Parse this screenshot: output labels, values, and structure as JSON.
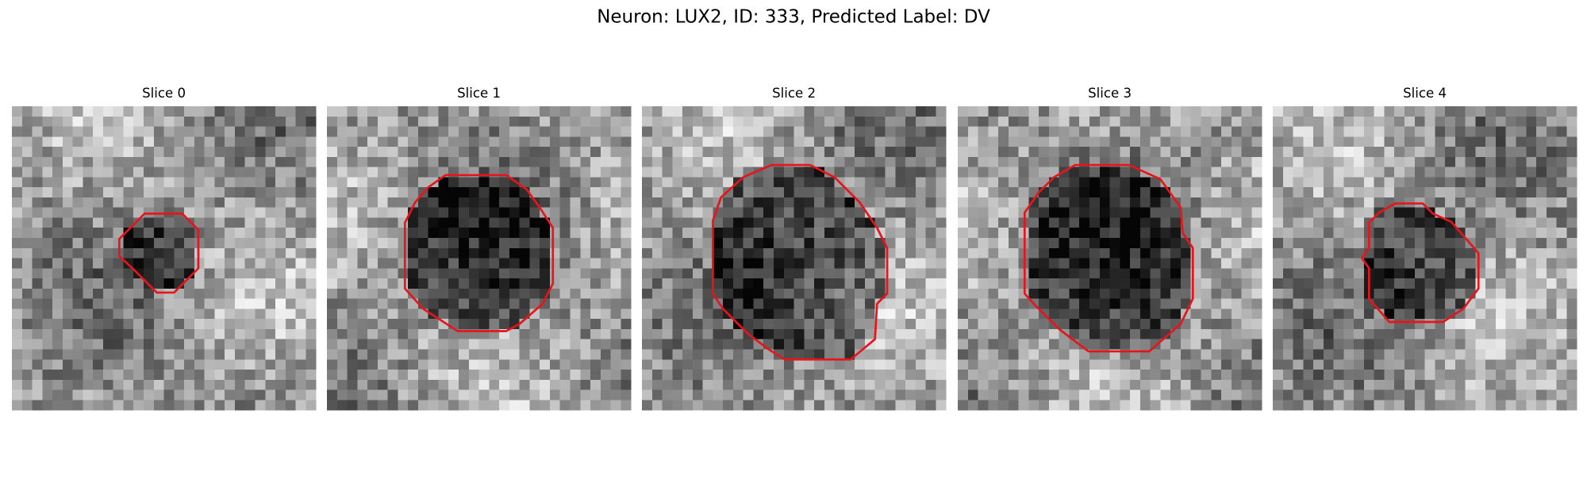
{
  "title": "Neuron: LUX2, ID: 333, Predicted Label: DV",
  "panels": [
    {
      "title": "Slice 0"
    },
    {
      "title": "Slice 1"
    },
    {
      "title": "Slice 2"
    },
    {
      "title": "Slice 3"
    },
    {
      "title": "Slice 4"
    }
  ]
}
